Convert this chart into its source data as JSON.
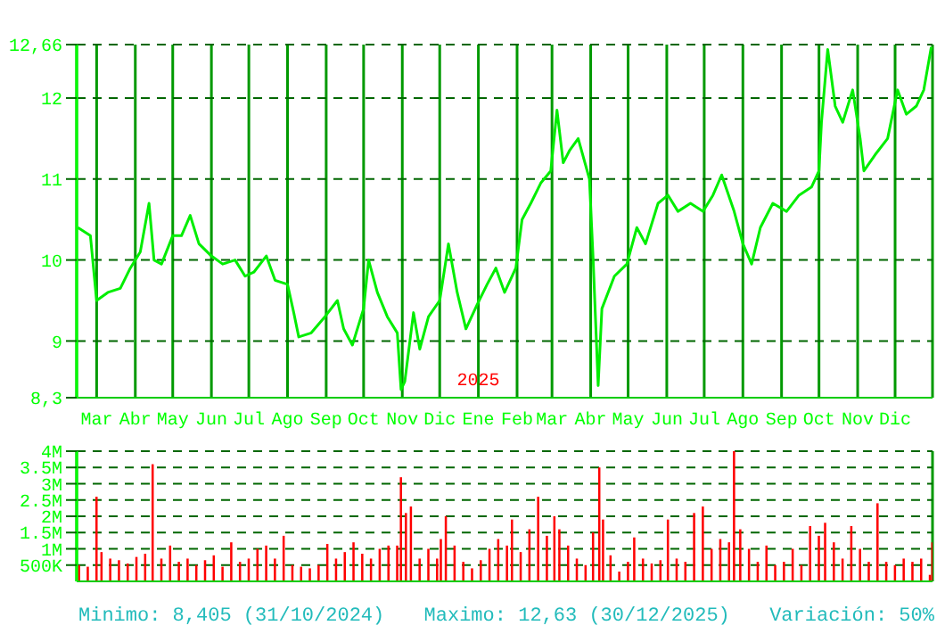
{
  "chart_data": [
    {
      "type": "line",
      "xlim": [
        "2024-02-14",
        "2025-12-31"
      ],
      "xticks": [
        {
          "value": "2024-03-01",
          "label": "Mar"
        },
        {
          "value": "2024-04-01",
          "label": "Abr"
        },
        {
          "value": "2024-05-01",
          "label": "May"
        },
        {
          "value": "2024-06-01",
          "label": "Jun"
        },
        {
          "value": "2024-07-01",
          "label": "Jul"
        },
        {
          "value": "2024-08-01",
          "label": "Ago"
        },
        {
          "value": "2024-09-01",
          "label": "Sep"
        },
        {
          "value": "2024-10-01",
          "label": "Oct"
        },
        {
          "value": "2024-11-01",
          "label": "Nov"
        },
        {
          "value": "2024-12-01",
          "label": "Dic"
        },
        {
          "value": "2025-01-01",
          "label": "Ene"
        },
        {
          "value": "2025-02-01",
          "label": "Feb"
        },
        {
          "value": "2025-03-01",
          "label": "Mar"
        },
        {
          "value": "2025-04-01",
          "label": "Abr"
        },
        {
          "value": "2025-05-01",
          "label": "May"
        },
        {
          "value": "2025-06-01",
          "label": "Jun"
        },
        {
          "value": "2025-07-01",
          "label": "Jul"
        },
        {
          "value": "2025-08-01",
          "label": "Ago"
        },
        {
          "value": "2025-09-01",
          "label": "Sep"
        },
        {
          "value": "2025-10-01",
          "label": "Oct"
        },
        {
          "value": "2025-11-01",
          "label": "Nov"
        },
        {
          "value": "2025-12-01",
          "label": "Dic"
        }
      ],
      "ylim": [
        8.3,
        12.66
      ],
      "yticks": [
        {
          "value": 8.3,
          "label": "8,3"
        },
        9,
        10,
        11,
        12,
        {
          "value": 12.66,
          "label": "12,66"
        }
      ],
      "grid": true,
      "annotations": [
        "2025"
      ],
      "x": [
        "2024-02-15",
        "2024-02-25",
        "2024-03-01",
        "2024-03-10",
        "2024-03-20",
        "2024-03-28",
        "2024-04-05",
        "2024-04-12",
        "2024-04-16",
        "2024-04-22",
        "2024-05-01",
        "2024-05-08",
        "2024-05-15",
        "2024-05-22",
        "2024-06-01",
        "2024-06-10",
        "2024-06-20",
        "2024-06-28",
        "2024-07-05",
        "2024-07-15",
        "2024-07-22",
        "2024-08-01",
        "2024-08-06",
        "2024-08-10",
        "2024-08-20",
        "2024-08-31",
        "2024-09-10",
        "2024-09-15",
        "2024-09-22",
        "2024-10-01",
        "2024-10-05",
        "2024-10-12",
        "2024-10-20",
        "2024-10-28",
        "2024-10-31",
        "2024-11-03",
        "2024-11-10",
        "2024-11-15",
        "2024-11-22",
        "2024-12-01",
        "2024-12-08",
        "2024-12-15",
        "2024-12-22",
        "2024-12-31",
        "2025-01-08",
        "2025-01-15",
        "2025-01-22",
        "2025-01-31",
        "2025-02-05",
        "2025-02-12",
        "2025-02-20",
        "2025-02-28",
        "2025-03-05",
        "2025-03-10",
        "2025-03-15",
        "2025-03-22",
        "2025-03-31",
        "2025-04-03",
        "2025-04-07",
        "2025-04-10",
        "2025-04-20",
        "2025-04-30",
        "2025-05-08",
        "2025-05-15",
        "2025-05-25",
        "2025-06-02",
        "2025-06-10",
        "2025-06-20",
        "2025-06-30",
        "2025-07-08",
        "2025-07-15",
        "2025-07-25",
        "2025-08-01",
        "2025-08-08",
        "2025-08-15",
        "2025-08-25",
        "2025-09-05",
        "2025-09-15",
        "2025-09-25",
        "2025-10-01",
        "2025-10-03",
        "2025-10-08",
        "2025-10-14",
        "2025-10-20",
        "2025-10-28",
        "2025-11-03",
        "2025-11-06",
        "2025-11-15",
        "2025-11-25",
        "2025-12-03",
        "2025-12-10",
        "2025-12-18",
        "2025-12-24",
        "2025-12-30"
      ],
      "series": [
        {
          "color": "#00ee00",
          "values": [
            10.4,
            10.3,
            9.5,
            9.6,
            9.65,
            9.9,
            10.1,
            10.7,
            10.0,
            9.95,
            10.3,
            10.3,
            10.55,
            10.2,
            10.05,
            9.95,
            10.0,
            9.8,
            9.85,
            10.05,
            9.75,
            9.7,
            9.35,
            9.05,
            9.1,
            9.3,
            9.5,
            9.15,
            8.95,
            9.4,
            10.0,
            9.6,
            9.3,
            9.1,
            8.4,
            8.5,
            9.35,
            8.9,
            9.3,
            9.5,
            10.2,
            9.6,
            9.15,
            9.45,
            9.7,
            9.9,
            9.6,
            9.9,
            10.5,
            10.7,
            10.95,
            11.1,
            11.85,
            11.2,
            11.35,
            11.5,
            11.0,
            10.0,
            8.45,
            9.4,
            9.8,
            9.95,
            10.4,
            10.2,
            10.7,
            10.8,
            10.6,
            10.7,
            10.6,
            10.8,
            11.05,
            10.6,
            10.2,
            9.95,
            10.4,
            10.7,
            10.6,
            10.8,
            10.9,
            11.1,
            11.7,
            12.6,
            11.9,
            11.7,
            12.1,
            11.5,
            11.1,
            11.3,
            11.5,
            12.1,
            11.8,
            11.9,
            12.1,
            12.63
          ]
        }
      ]
    },
    {
      "type": "bar",
      "tick_labels": "y",
      "xlim": [
        "2024-02-14",
        "2025-12-31"
      ],
      "xticks": [
        "2024-03-01",
        "2024-04-01",
        "2024-05-01",
        "2024-06-01",
        "2024-07-01",
        "2024-08-01",
        "2024-09-01",
        "2024-10-01",
        "2024-11-01",
        "2024-12-01",
        "2025-01-01",
        "2025-02-01",
        "2025-03-01",
        "2025-04-01",
        "2025-05-01",
        "2025-06-01",
        "2025-07-01",
        "2025-08-01",
        "2025-09-01",
        "2025-10-01",
        "2025-11-01",
        "2025-12-01"
      ],
      "ylim": [
        0,
        4000000
      ],
      "yticks": [
        {
          "value": 500000,
          "label": "500K"
        },
        {
          "value": 1000000,
          "label": "1M"
        },
        {
          "value": 1500000,
          "label": "1.5M"
        },
        {
          "value": 2000000,
          "label": "2M"
        },
        {
          "value": 2500000,
          "label": "2.5M"
        },
        {
          "value": 3000000,
          "label": "3M"
        },
        {
          "value": 3500000,
          "label": "3.5M"
        },
        {
          "value": 4000000,
          "label": "4M"
        }
      ],
      "grid": true,
      "annotations": [
        "Minimo: 8,405 (31/10/2024)",
        "Maximo: 12,63 (30/12/2025)",
        "Variación: 50%"
      ],
      "x": [
        "2024-02-16",
        "2024-02-23",
        "2024-03-01",
        "2024-03-05",
        "2024-03-12",
        "2024-03-19",
        "2024-03-26",
        "2024-04-02",
        "2024-04-09",
        "2024-04-15",
        "2024-04-22",
        "2024-04-29",
        "2024-05-06",
        "2024-05-13",
        "2024-05-20",
        "2024-05-27",
        "2024-06-03",
        "2024-06-10",
        "2024-06-17",
        "2024-06-24",
        "2024-07-01",
        "2024-07-08",
        "2024-07-15",
        "2024-07-22",
        "2024-07-29",
        "2024-08-05",
        "2024-08-12",
        "2024-08-19",
        "2024-08-26",
        "2024-09-02",
        "2024-09-09",
        "2024-09-16",
        "2024-09-23",
        "2024-09-30",
        "2024-10-07",
        "2024-10-14",
        "2024-10-21",
        "2024-10-28",
        "2024-10-31",
        "2024-11-04",
        "2024-11-08",
        "2024-11-15",
        "2024-11-22",
        "2024-11-29",
        "2024-12-02",
        "2024-12-06",
        "2024-12-13",
        "2024-12-20",
        "2024-12-27",
        "2025-01-03",
        "2025-01-10",
        "2025-01-17",
        "2025-01-24",
        "2025-01-28",
        "2025-02-04",
        "2025-02-11",
        "2025-02-18",
        "2025-02-25",
        "2025-03-03",
        "2025-03-07",
        "2025-03-14",
        "2025-03-21",
        "2025-03-28",
        "2025-04-03",
        "2025-04-08",
        "2025-04-11",
        "2025-04-17",
        "2025-04-24",
        "2025-05-01",
        "2025-05-06",
        "2025-05-13",
        "2025-05-20",
        "2025-05-27",
        "2025-06-02",
        "2025-06-09",
        "2025-06-16",
        "2025-06-23",
        "2025-06-30",
        "2025-07-07",
        "2025-07-14",
        "2025-07-21",
        "2025-07-25",
        "2025-07-30",
        "2025-08-06",
        "2025-08-13",
        "2025-08-20",
        "2025-08-27",
        "2025-09-03",
        "2025-09-10",
        "2025-09-17",
        "2025-09-24",
        "2025-10-01",
        "2025-10-06",
        "2025-10-13",
        "2025-10-20",
        "2025-10-27",
        "2025-11-03",
        "2025-11-10",
        "2025-11-17",
        "2025-11-24",
        "2025-12-01",
        "2025-12-08",
        "2025-12-15",
        "2025-12-22",
        "2025-12-29",
        "2025-12-31"
      ],
      "series": [
        {
          "color": "#ff0000",
          "values": [
            500000,
            450000,
            2600000,
            900000,
            700000,
            650000,
            550000,
            750000,
            850000,
            3600000,
            700000,
            1100000,
            600000,
            700000,
            500000,
            650000,
            800000,
            450000,
            1200000,
            600000,
            700000,
            1000000,
            1100000,
            700000,
            1400000,
            500000,
            450000,
            400000,
            500000,
            1150000,
            700000,
            900000,
            1200000,
            850000,
            700000,
            1000000,
            1100000,
            1100000,
            3200000,
            2100000,
            2300000,
            700000,
            1000000,
            700000,
            1300000,
            2000000,
            1100000,
            600000,
            400000,
            650000,
            1000000,
            1300000,
            1100000,
            1900000,
            900000,
            1600000,
            2600000,
            1400000,
            2000000,
            1600000,
            1100000,
            700000,
            500000,
            1500000,
            3500000,
            1900000,
            800000,
            300000,
            600000,
            1350000,
            700000,
            550000,
            650000,
            1900000,
            700000,
            600000,
            2100000,
            2300000,
            1000000,
            1300000,
            1200000,
            4000000,
            1600000,
            1000000,
            600000,
            1100000,
            500000,
            600000,
            1000000,
            500000,
            1700000,
            1400000,
            1800000,
            1200000,
            700000,
            1700000,
            1000000,
            600000,
            2400000,
            600000,
            500000,
            700000,
            600000,
            700000,
            200000,
            1200000
          ]
        }
      ]
    }
  ]
}
